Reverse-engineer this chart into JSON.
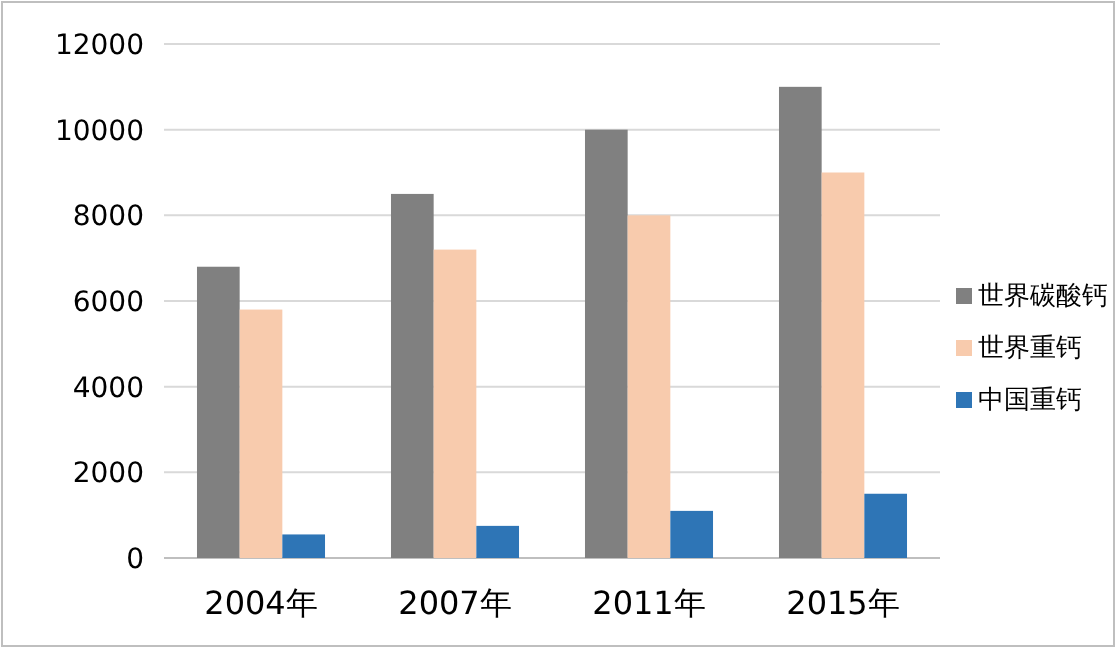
{
  "chart_data": {
    "type": "bar",
    "categories": [
      "2004年",
      "2007年",
      "2011年",
      "2015年"
    ],
    "series": [
      {
        "name": "世界碳酸钙",
        "color": "#808080",
        "values": [
          6800,
          8500,
          10000,
          11000
        ]
      },
      {
        "name": "世界重钙",
        "color": "#f8cbad",
        "values": [
          5800,
          7200,
          8000,
          9000
        ]
      },
      {
        "name": "中国重钙",
        "color": "#2e75b6",
        "values": [
          550,
          750,
          1100,
          1500
        ]
      }
    ],
    "ylim": [
      0,
      12000
    ],
    "yticks": [
      0,
      2000,
      4000,
      6000,
      8000,
      10000,
      12000
    ],
    "grid": "y",
    "legend": "right"
  }
}
